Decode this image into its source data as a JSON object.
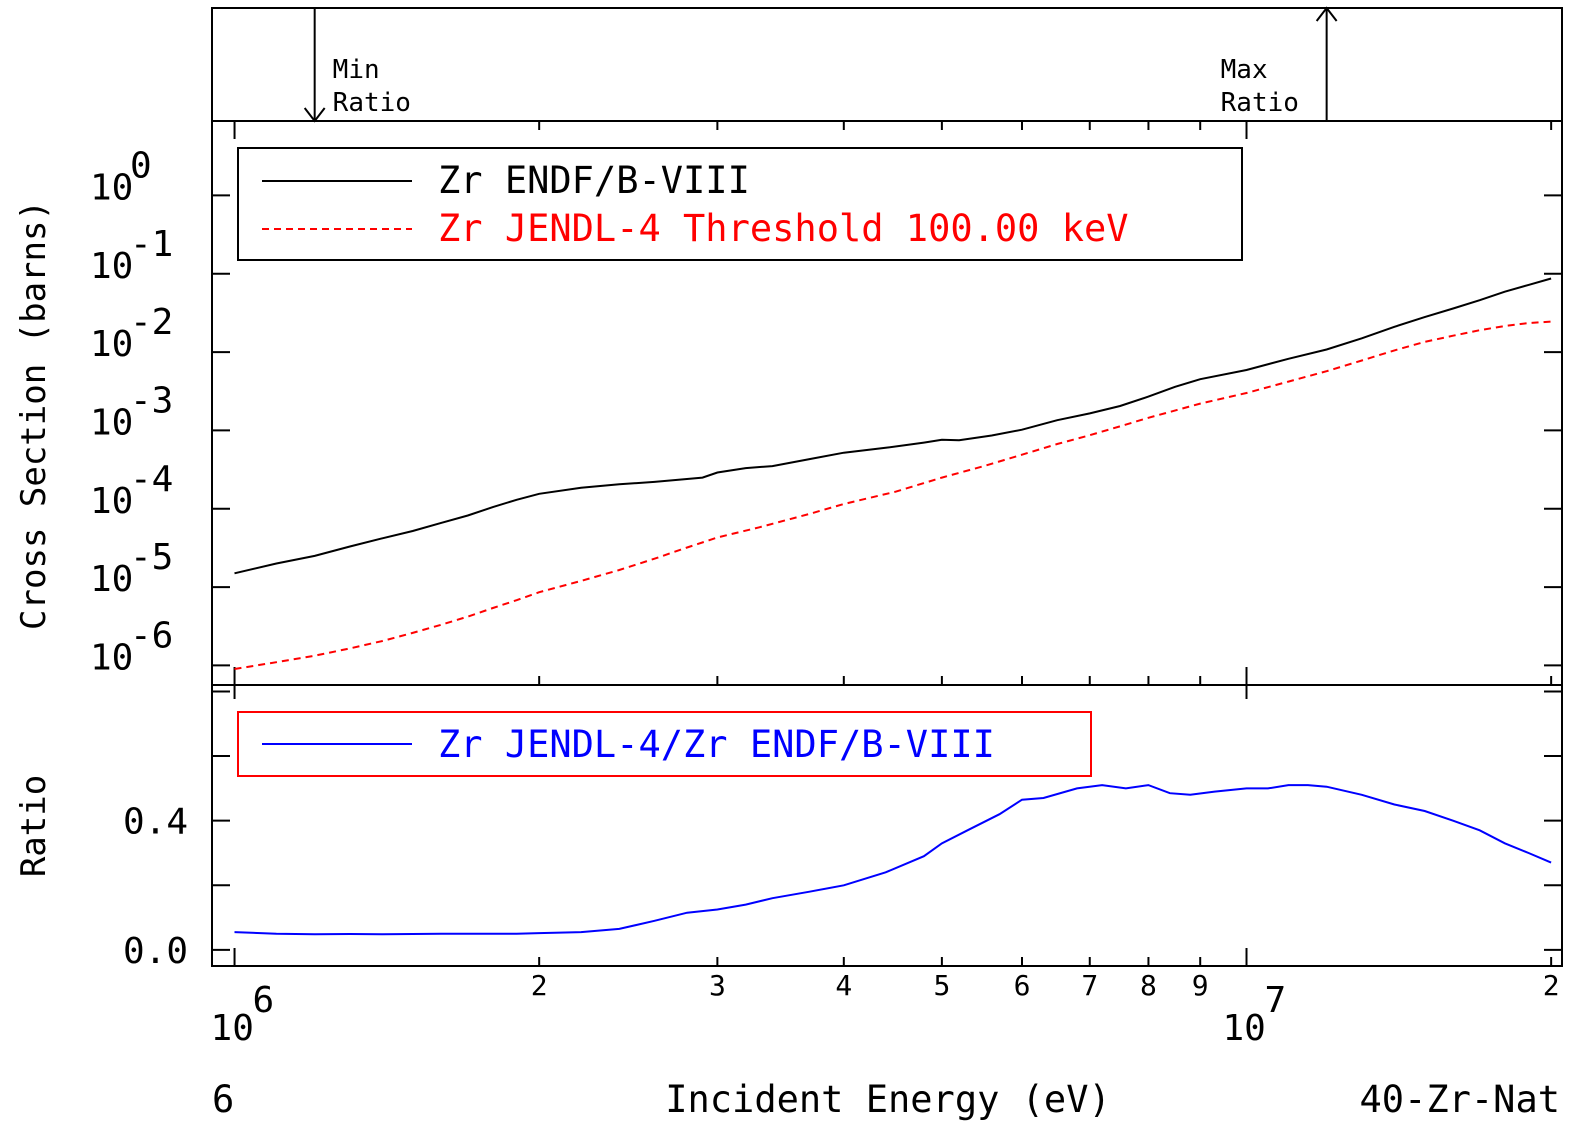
{
  "chart_data": {
    "type": "line",
    "footer": {
      "left": "6",
      "center": "Incident Energy (eV)",
      "right": "40-Zr-Nat"
    },
    "top_panel": {
      "min_label": [
        "Min",
        "Ratio"
      ],
      "max_label": [
        "Max",
        "Ratio"
      ],
      "min_energy": 1200000,
      "max_energy": 12000000
    },
    "x_axis": {
      "scale": "log",
      "xlim": [
        950000,
        20500000
      ],
      "decade_labels": [
        {
          "value": 1000000,
          "base": "10",
          "exp": "6"
        },
        {
          "value": 10000000,
          "base": "10",
          "exp": "7"
        }
      ],
      "minor_labels": [
        {
          "value": 2000000,
          "text": "2"
        },
        {
          "value": 3000000,
          "text": "3"
        },
        {
          "value": 4000000,
          "text": "4"
        },
        {
          "value": 5000000,
          "text": "5"
        },
        {
          "value": 6000000,
          "text": "6"
        },
        {
          "value": 7000000,
          "text": "7"
        },
        {
          "value": 8000000,
          "text": "8"
        },
        {
          "value": 9000000,
          "text": "9"
        },
        {
          "value": 20000000,
          "text": "2"
        }
      ]
    },
    "cross_section_panel": {
      "ylabel": "Cross Section (barns)",
      "scale": "log",
      "ylim_log10": [
        -6.25,
        0.95
      ],
      "tick_labels": [
        {
          "value": 1,
          "base": "10",
          "exp": "0"
        },
        {
          "value": 0.1,
          "base": "10",
          "exp": "-1"
        },
        {
          "value": 0.01,
          "base": "10",
          "exp": "-2"
        },
        {
          "value": 0.001,
          "base": "10",
          "exp": "-3"
        },
        {
          "value": 0.0001,
          "base": "10",
          "exp": "-4"
        },
        {
          "value": 1e-05,
          "base": "10",
          "exp": "-5"
        },
        {
          "value": 1e-06,
          "base": "10",
          "exp": "-6"
        }
      ],
      "series": [
        {
          "name": "Zr ENDF/B-VIII",
          "color": "#000000",
          "style": "solid",
          "points": [
            [
              1000000,
              1.5e-05
            ],
            [
              1100000,
              2e-05
            ],
            [
              1200000,
              2.5e-05
            ],
            [
              1300000,
              3.3e-05
            ],
            [
              1400000,
              4.2e-05
            ],
            [
              1500000,
              5.2e-05
            ],
            [
              1600000,
              6.6e-05
            ],
            [
              1700000,
              8.2e-05
            ],
            [
              1800000,
              0.000105
            ],
            [
              1900000,
              0.00013
            ],
            [
              2000000,
              0.000155
            ],
            [
              2200000,
              0.000185
            ],
            [
              2400000,
              0.000205
            ],
            [
              2600000,
              0.00022
            ],
            [
              2900000,
              0.00025
            ],
            [
              3000000,
              0.00029
            ],
            [
              3200000,
              0.00033
            ],
            [
              3400000,
              0.00035
            ],
            [
              3700000,
              0.00043
            ],
            [
              4000000,
              0.00052
            ],
            [
              4400000,
              0.0006
            ],
            [
              4800000,
              0.0007
            ],
            [
              5000000,
              0.00076
            ],
            [
              5200000,
              0.00075
            ],
            [
              5600000,
              0.00086
            ],
            [
              6000000,
              0.00102
            ],
            [
              6500000,
              0.00135
            ],
            [
              7000000,
              0.00165
            ],
            [
              7500000,
              0.00205
            ],
            [
              8000000,
              0.0027
            ],
            [
              8500000,
              0.0036
            ],
            [
              9000000,
              0.0045
            ],
            [
              10000000,
              0.0059
            ],
            [
              11000000,
              0.0082
            ],
            [
              12000000,
              0.0108
            ],
            [
              13000000,
              0.015
            ],
            [
              14000000,
              0.021
            ],
            [
              15000000,
              0.028
            ],
            [
              16000000,
              0.036
            ],
            [
              17000000,
              0.046
            ],
            [
              18000000,
              0.059
            ],
            [
              19000000,
              0.072
            ],
            [
              20000000,
              0.087
            ]
          ]
        },
        {
          "name": "Zr JENDL-4 Threshold 100.00 keV",
          "color": "#ff0000",
          "style": "dashed",
          "points": [
            [
              1000000,
              9e-07
            ],
            [
              1100000,
              1.1e-06
            ],
            [
              1200000,
              1.33e-06
            ],
            [
              1300000,
              1.65e-06
            ],
            [
              1400000,
              2.05e-06
            ],
            [
              1500000,
              2.6e-06
            ],
            [
              1600000,
              3.3e-06
            ],
            [
              1700000,
              4.2e-06
            ],
            [
              1800000,
              5.4e-06
            ],
            [
              1900000,
              6.8e-06
            ],
            [
              2000000,
              8.6e-06
            ],
            [
              2200000,
              1.2e-05
            ],
            [
              2400000,
              1.65e-05
            ],
            [
              2600000,
              2.3e-05
            ],
            [
              2800000,
              3.2e-05
            ],
            [
              3000000,
              4.3e-05
            ],
            [
              3300000,
              5.8e-05
            ],
            [
              3700000,
              8.6e-05
            ],
            [
              4000000,
              0.000115
            ],
            [
              4500000,
              0.000165
            ],
            [
              5000000,
              0.00025
            ],
            [
              5500000,
              0.00035
            ],
            [
              6000000,
              0.00049
            ],
            [
              6500000,
              0.00067
            ],
            [
              7000000,
              0.00087
            ],
            [
              7500000,
              0.00113
            ],
            [
              8000000,
              0.00145
            ],
            [
              9000000,
              0.0022
            ],
            [
              10000000,
              0.003
            ],
            [
              11000000,
              0.0042
            ],
            [
              12000000,
              0.0057
            ],
            [
              13000000,
              0.0078
            ],
            [
              14000000,
              0.0105
            ],
            [
              15000000,
              0.0135
            ],
            [
              16000000,
              0.0162
            ],
            [
              17000000,
              0.019
            ],
            [
              18000000,
              0.0215
            ],
            [
              19000000,
              0.0235
            ],
            [
              20000000,
              0.0245
            ]
          ]
        }
      ]
    },
    "ratio_panel": {
      "ylabel": "Ratio",
      "scale": "linear",
      "ylim": [
        -0.05,
        0.82
      ],
      "tick_labels": [
        {
          "value": 0.0,
          "text": "0.0"
        },
        {
          "value": 0.4,
          "text": "0.4"
        }
      ],
      "minor_tick_values": [
        0.2,
        0.6,
        0.8
      ],
      "legend_border_color": "#ff0000",
      "series": [
        {
          "name": "Zr JENDL-4/Zr ENDF/B-VIII",
          "color": "#0000ff",
          "style": "solid",
          "points": [
            [
              1000000,
              0.055
            ],
            [
              1100000,
              0.05
            ],
            [
              1200000,
              0.048
            ],
            [
              1300000,
              0.049
            ],
            [
              1400000,
              0.048
            ],
            [
              1500000,
              0.049
            ],
            [
              1600000,
              0.05
            ],
            [
              1700000,
              0.05
            ],
            [
              1800000,
              0.05
            ],
            [
              1900000,
              0.05
            ],
            [
              2000000,
              0.052
            ],
            [
              2200000,
              0.055
            ],
            [
              2400000,
              0.065
            ],
            [
              2600000,
              0.09
            ],
            [
              2800000,
              0.115
            ],
            [
              3000000,
              0.125
            ],
            [
              3200000,
              0.14
            ],
            [
              3400000,
              0.16
            ],
            [
              3700000,
              0.18
            ],
            [
              4000000,
              0.2
            ],
            [
              4400000,
              0.24
            ],
            [
              4800000,
              0.29
            ],
            [
              5000000,
              0.33
            ],
            [
              5300000,
              0.37
            ],
            [
              5700000,
              0.42
            ],
            [
              6000000,
              0.465
            ],
            [
              6300000,
              0.47
            ],
            [
              6800000,
              0.5
            ],
            [
              7200000,
              0.51
            ],
            [
              7600000,
              0.5
            ],
            [
              8000000,
              0.51
            ],
            [
              8400000,
              0.485
            ],
            [
              8800000,
              0.48
            ],
            [
              9300000,
              0.49
            ],
            [
              10000000,
              0.5
            ],
            [
              10500000,
              0.5
            ],
            [
              11000000,
              0.51
            ],
            [
              11500000,
              0.51
            ],
            [
              12000000,
              0.505
            ],
            [
              13000000,
              0.48
            ],
            [
              14000000,
              0.45
            ],
            [
              15000000,
              0.43
            ],
            [
              16000000,
              0.4
            ],
            [
              17000000,
              0.37
            ],
            [
              18000000,
              0.33
            ],
            [
              19000000,
              0.3
            ],
            [
              20000000,
              0.27
            ]
          ]
        }
      ]
    }
  }
}
